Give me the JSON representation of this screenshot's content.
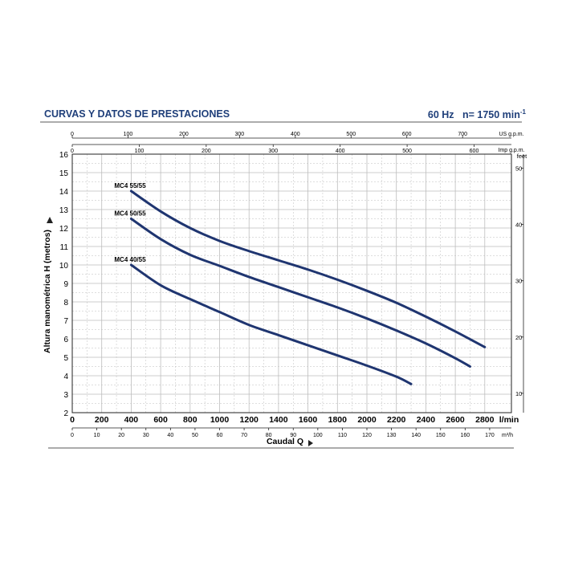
{
  "header": {
    "title": "CURVAS Y DATOS DE PRESTACIONES",
    "frequency": "60 Hz",
    "speed_prefix": "n= 1750 min",
    "speed_exp": "-1"
  },
  "colors": {
    "curve": "#1f3570",
    "grid": "#bdbdbd",
    "axis": "#222222",
    "title": "#1f3f7a"
  },
  "chart_data": {
    "type": "line",
    "title": "",
    "xlabel": "Caudal Q",
    "ylabel": "Altura manométrica H (metros)",
    "grid": true,
    "xlim": [
      0,
      2900
    ],
    "ylim": [
      2,
      16
    ],
    "x_unit": "l/min",
    "x_ticks": [
      0,
      200,
      400,
      600,
      800,
      1000,
      1200,
      1400,
      1600,
      1800,
      2000,
      2200,
      2400,
      2600,
      2800
    ],
    "y_ticks": [
      2,
      3,
      4,
      5,
      6,
      7,
      8,
      9,
      10,
      11,
      12,
      13,
      14,
      15,
      16
    ],
    "secondary_axes": {
      "us_gpm": {
        "label": "US g.p.m.",
        "ticks": [
          0,
          100,
          200,
          300,
          400,
          500,
          600,
          700
        ]
      },
      "imp_gpm": {
        "label": "Imp g.p.m.",
        "ticks": [
          0,
          100,
          200,
          300,
          400,
          500,
          600
        ]
      },
      "m3h": {
        "label": "m³/h",
        "ticks": [
          0,
          10,
          20,
          30,
          40,
          50,
          60,
          70,
          80,
          90,
          100,
          110,
          120,
          130,
          140,
          150,
          160,
          170
        ]
      },
      "feet": {
        "label": "feet",
        "ticks": [
          10,
          20,
          30,
          40,
          50
        ]
      }
    },
    "series": [
      {
        "name": "MC4 55/55",
        "x": [
          400,
          600,
          800,
          1000,
          1200,
          1400,
          1600,
          1800,
          2000,
          2200,
          2400,
          2600,
          2800
        ],
        "y": [
          14.0,
          12.9,
          12.0,
          11.3,
          10.75,
          10.25,
          9.75,
          9.2,
          8.6,
          7.95,
          7.2,
          6.4,
          5.55
        ]
      },
      {
        "name": "MC4 50/55",
        "x": [
          400,
          600,
          800,
          1000,
          1200,
          1400,
          1600,
          1800,
          2000,
          2200,
          2400,
          2600,
          2700
        ],
        "y": [
          12.5,
          11.4,
          10.55,
          9.95,
          9.35,
          8.8,
          8.25,
          7.7,
          7.1,
          6.45,
          5.75,
          4.95,
          4.5
        ]
      },
      {
        "name": "MC4 40/55",
        "x": [
          400,
          600,
          800,
          1000,
          1200,
          1400,
          1600,
          1800,
          2000,
          2200,
          2300
        ],
        "y": [
          10.0,
          8.9,
          8.15,
          7.45,
          6.75,
          6.2,
          5.65,
          5.1,
          4.55,
          3.95,
          3.55
        ]
      }
    ]
  }
}
